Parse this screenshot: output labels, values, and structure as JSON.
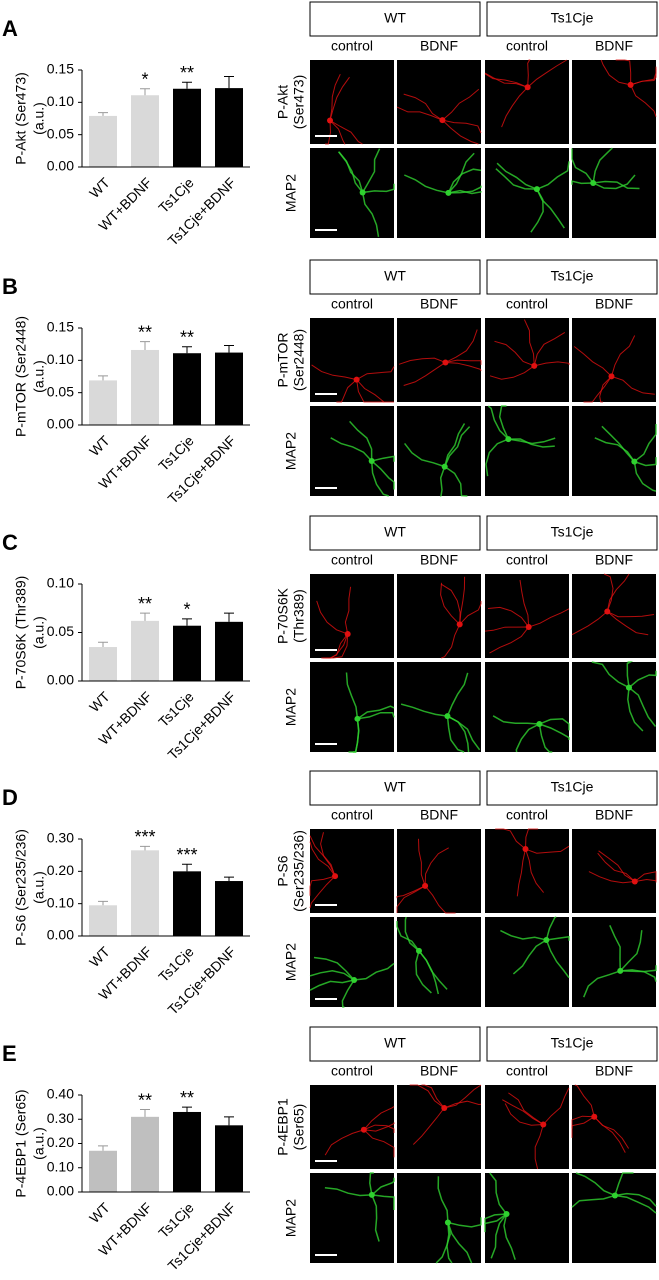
{
  "chart_data": [
    {
      "type": "bar",
      "panel": "A",
      "ylabel": [
        "P-Akt (Ser473)",
        "(a.u.)"
      ],
      "categories": [
        "WT",
        "WT+BDNF",
        "Ts1Cje",
        "Ts1Cje+BDNF"
      ],
      "values": [
        0.079,
        0.111,
        0.121,
        0.122
      ],
      "errors": [
        0.005,
        0.01,
        0.01,
        0.018
      ],
      "colors": [
        "#d9d9d9",
        "#d9d9d9",
        "#000000",
        "#000000"
      ],
      "significance": [
        null,
        "*",
        "**",
        null
      ],
      "ylim": [
        0,
        0.15
      ],
      "yticks": [
        {
          "value": 0,
          "label": "0.00"
        },
        {
          "value": 0.05,
          "label": "0.05"
        },
        {
          "value": 0.1,
          "label": "0.10"
        },
        {
          "value": 0.15,
          "label": "0.15"
        }
      ],
      "image_panel": {
        "groups": [
          "WT",
          "Ts1Cje"
        ],
        "columns": [
          "control",
          "BDNF",
          "control",
          "BDNF"
        ],
        "rows": [
          [
            "P-Akt",
            "(Ser473)"
          ],
          [
            "MAP2"
          ]
        ]
      }
    },
    {
      "type": "bar",
      "panel": "B",
      "ylabel": [
        "P-mTOR (Ser2448)",
        "(a.u.)"
      ],
      "categories": [
        "WT",
        "WT+BDNF",
        "Ts1Cje",
        "Ts1Cje+BDNF"
      ],
      "values": [
        0.069,
        0.116,
        0.111,
        0.112
      ],
      "errors": [
        0.007,
        0.013,
        0.01,
        0.011
      ],
      "colors": [
        "#d9d9d9",
        "#d9d9d9",
        "#000000",
        "#000000"
      ],
      "significance": [
        null,
        "**",
        "**",
        null
      ],
      "ylim": [
        0,
        0.15
      ],
      "yticks": [
        {
          "value": 0,
          "label": "0.00"
        },
        {
          "value": 0.05,
          "label": "0.05"
        },
        {
          "value": 0.1,
          "label": "0.10"
        },
        {
          "value": 0.15,
          "label": "0.15"
        }
      ],
      "image_panel": {
        "groups": [
          "WT",
          "Ts1Cje"
        ],
        "columns": [
          "control",
          "BDNF",
          "control",
          "BDNF"
        ],
        "rows": [
          [
            "P-mTOR",
            "(Ser2448)"
          ],
          [
            "MAP2"
          ]
        ]
      }
    },
    {
      "type": "bar",
      "panel": "C",
      "ylabel": [
        "P-70S6K (Thr389)",
        "(a.u.)"
      ],
      "categories": [
        "WT",
        "WT+BDNF",
        "Ts1Cje",
        "Ts1Cje+BDNF"
      ],
      "values": [
        0.035,
        0.062,
        0.057,
        0.061
      ],
      "errors": [
        0.005,
        0.008,
        0.007,
        0.009
      ],
      "colors": [
        "#d9d9d9",
        "#d9d9d9",
        "#000000",
        "#000000"
      ],
      "significance": [
        null,
        "**",
        "*",
        null
      ],
      "ylim": [
        0,
        0.1
      ],
      "yticks": [
        {
          "value": 0,
          "label": "0.00"
        },
        {
          "value": 0.05,
          "label": "0.05"
        },
        {
          "value": 0.1,
          "label": "0.10"
        }
      ],
      "image_panel": {
        "groups": [
          "WT",
          "Ts1Cje"
        ],
        "columns": [
          "control",
          "BDNF",
          "control",
          "BDNF"
        ],
        "rows": [
          [
            "P-70S6K",
            "(Thr389)"
          ],
          [
            "MAP2"
          ]
        ]
      }
    },
    {
      "type": "bar",
      "panel": "D",
      "ylabel": [
        "P-S6 (Ser235/236)",
        "(a.u.)"
      ],
      "categories": [
        "WT",
        "WT+BDNF",
        "Ts1Cje",
        "Ts1Cje+BDNF"
      ],
      "values": [
        0.095,
        0.265,
        0.2,
        0.17
      ],
      "errors": [
        0.012,
        0.012,
        0.022,
        0.012
      ],
      "colors": [
        "#d9d9d9",
        "#d9d9d9",
        "#000000",
        "#000000"
      ],
      "significance": [
        null,
        "***",
        "***",
        null
      ],
      "ylim": [
        0,
        0.3
      ],
      "yticks": [
        {
          "value": 0,
          "label": "0.00"
        },
        {
          "value": 0.1,
          "label": "0.10"
        },
        {
          "value": 0.2,
          "label": "0.20"
        },
        {
          "value": 0.3,
          "label": "0.30"
        }
      ],
      "image_panel": {
        "groups": [
          "WT",
          "Ts1Cje"
        ],
        "columns": [
          "control",
          "BDNF",
          "control",
          "BDNF"
        ],
        "rows": [
          [
            "P-S6",
            "(Ser235/236)"
          ],
          [
            "MAP2"
          ]
        ]
      }
    },
    {
      "type": "bar",
      "panel": "E",
      "ylabel": [
        "P-4EBP1 (Ser65)",
        "(a.u.)"
      ],
      "categories": [
        "WT",
        "WT+BDNF",
        "Ts1Cje",
        "Ts1Cje+BDNF"
      ],
      "values": [
        0.17,
        0.31,
        0.33,
        0.275
      ],
      "errors": [
        0.02,
        0.03,
        0.02,
        0.035
      ],
      "colors": [
        "#bfbfbf",
        "#bfbfbf",
        "#000000",
        "#000000"
      ],
      "significance": [
        null,
        "**",
        "**",
        null
      ],
      "ylim": [
        0,
        0.4
      ],
      "yticks": [
        {
          "value": 0,
          "label": "0.00"
        },
        {
          "value": 0.1,
          "label": "0.10"
        },
        {
          "value": 0.2,
          "label": "0.20"
        },
        {
          "value": 0.3,
          "label": "0.30"
        },
        {
          "value": 0.4,
          "label": "0.40"
        }
      ],
      "image_panel": {
        "groups": [
          "WT",
          "Ts1Cje"
        ],
        "columns": [
          "control",
          "BDNF",
          "control",
          "BDNF"
        ],
        "rows": [
          [
            "P-4EBP1",
            "(Ser65)"
          ],
          [
            "MAP2"
          ]
        ]
      }
    }
  ]
}
